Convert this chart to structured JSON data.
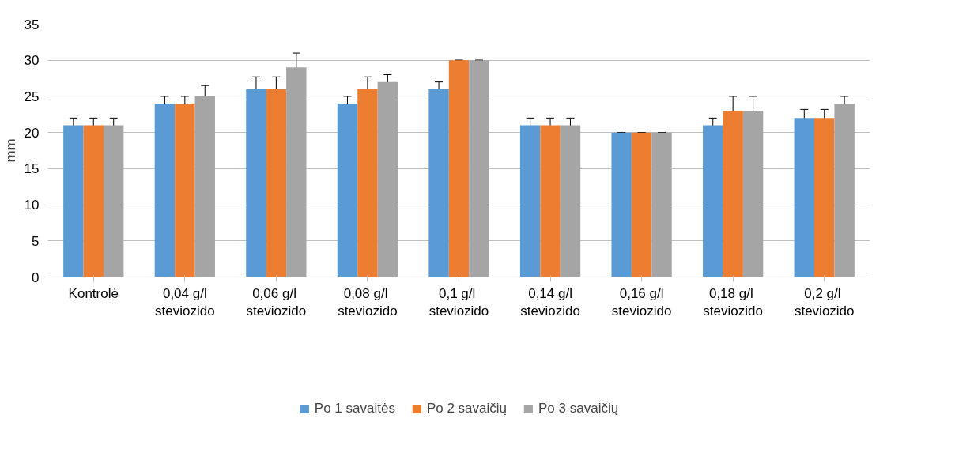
{
  "chart_data": {
    "type": "bar",
    "ylabel": "mm",
    "categories": [
      "Kontrolė",
      "0,04 g/l\nsteviozido",
      "0,06  g/l\nsteviozido",
      "0,08  g/l\nsteviozido",
      "0,1  g/l\nsteviozido",
      "0,14 g/l\nsteviozido",
      "0,16 g/l\nsteviozido",
      "0,18  g/l\nsteviozido",
      "0,2  g/l\nsteviozido"
    ],
    "series": [
      {
        "name": "Po 1 savaitės",
        "color": "#5b9bd5",
        "values": [
          21,
          24,
          26,
          24,
          26,
          21,
          20,
          21,
          22
        ],
        "errors": [
          1,
          1,
          1.7,
          1,
          1,
          1,
          0,
          1,
          1.2
        ]
      },
      {
        "name": "Po 2 savaičių",
        "color": "#ed7d31",
        "values": [
          21,
          24,
          26,
          26,
          30,
          21,
          20,
          23,
          22
        ],
        "errors": [
          1,
          1,
          1.7,
          1.7,
          0,
          1,
          0,
          2,
          1.2
        ]
      },
      {
        "name": "Po 3 savaičių",
        "color": "#a5a5a5",
        "values": [
          21,
          25,
          29,
          27,
          30,
          21,
          20,
          23,
          24
        ],
        "errors": [
          1,
          1.5,
          2,
          1,
          0,
          1,
          0,
          2,
          1
        ]
      }
    ],
    "ylim": [
      0,
      35
    ],
    "yticks": [
      0,
      5,
      10,
      15,
      20,
      25,
      30,
      35
    ],
    "grid": "y",
    "legend": "bottom"
  }
}
